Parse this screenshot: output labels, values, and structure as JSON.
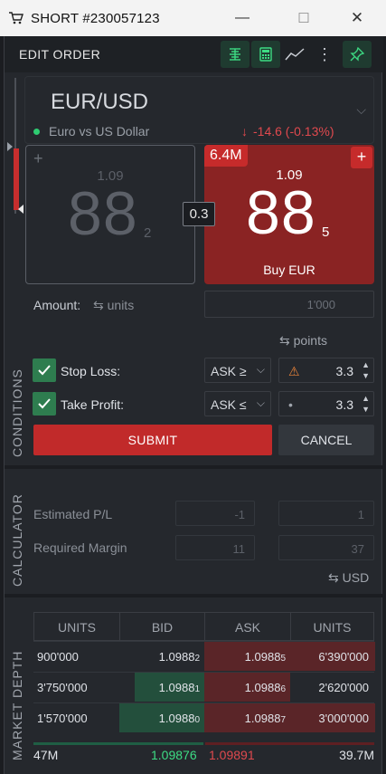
{
  "window": {
    "title": "SHORT #230057123",
    "minimize_glyph": "—",
    "maximize_glyph": "☐",
    "close_glyph": "✕"
  },
  "header": {
    "title": "EDIT ORDER",
    "more_glyph": "⋮",
    "icons": [
      "ladder-icon",
      "calculator-icon",
      "chart-line-icon",
      "more-icon",
      "pin-icon"
    ]
  },
  "instrument": {
    "symbol": "EUR/USD",
    "chevron": "⌵",
    "description": "Euro vs US Dollar",
    "change_arrow": "↓",
    "change": "-14.6 (-0.13%)",
    "status_color": "#2ecc71"
  },
  "sell_tile": {
    "plus": "+",
    "big_figure": "1.09",
    "pips": "88",
    "fraction": "2"
  },
  "buy_tile": {
    "volume": "6.4M",
    "plus": "+",
    "big_figure": "1.09",
    "pips": "88",
    "fraction": "5",
    "label": "Buy EUR"
  },
  "spread": "0.3",
  "amount": {
    "label": "Amount:",
    "swap_glyph": "⇆",
    "unit": "units",
    "placeholder": "1'000"
  },
  "conditions": {
    "section_label": "CONDITIONS",
    "swap_glyph": "⇆",
    "unit_label": "points",
    "stop_loss": {
      "label": "Stop Loss:",
      "checked": true,
      "operator": "ASK ≥",
      "value": "3.3",
      "warning_glyph": "⚠"
    },
    "take_profit": {
      "label": "Take Profit:",
      "checked": true,
      "operator": "ASK ≤",
      "value": "3.3",
      "marker_glyph": "•"
    },
    "select_arrow": "⌵",
    "spin_up": "▲",
    "spin_down": "▼",
    "submit": "SUBMIT",
    "cancel": "CANCEL"
  },
  "calculator": {
    "section_label": "CALCULATOR",
    "estimated_pl_label": "Estimated P/L",
    "estimated_pl": [
      "-1",
      "1"
    ],
    "required_margin_label": "Required Margin",
    "required_margin": [
      "11",
      "37"
    ],
    "swap_glyph": "⇆",
    "currency": "USD"
  },
  "market_depth": {
    "section_label": "MARKET DEPTH",
    "headers": [
      "UNITS",
      "BID",
      "ASK",
      "UNITS"
    ],
    "rows": [
      {
        "bid_units": "900'000",
        "bid": "1.0988",
        "bid_sub": "2",
        "ask": "1.0988",
        "ask_sub": "5",
        "ask_units": "6'390'000",
        "bid_fill": 0.0,
        "ask_fill": 1.0
      },
      {
        "bid_units": "3'750'000",
        "bid": "1.0988",
        "bid_sub": "1",
        "ask": "1.0988",
        "ask_sub": "6",
        "ask_units": "2'620'000",
        "bid_fill": 0.82,
        "ask_fill": 0.5
      },
      {
        "bid_units": "1'570'000",
        "bid": "1.0988",
        "bid_sub": "0",
        "ask": "1.0988",
        "ask_sub": "7",
        "ask_units": "3'000'000",
        "bid_fill": 1.0,
        "ask_fill": 1.0
      }
    ],
    "footer": {
      "bid_total": "47M",
      "avg_bid": "1.09876",
      "avg_ask": "1.09891",
      "ask_total": "39.7M"
    }
  },
  "colors": {
    "sell_green": "#2ecc71",
    "buy_red": "#c62b2b",
    "accent_green": "#2e7d4f"
  }
}
